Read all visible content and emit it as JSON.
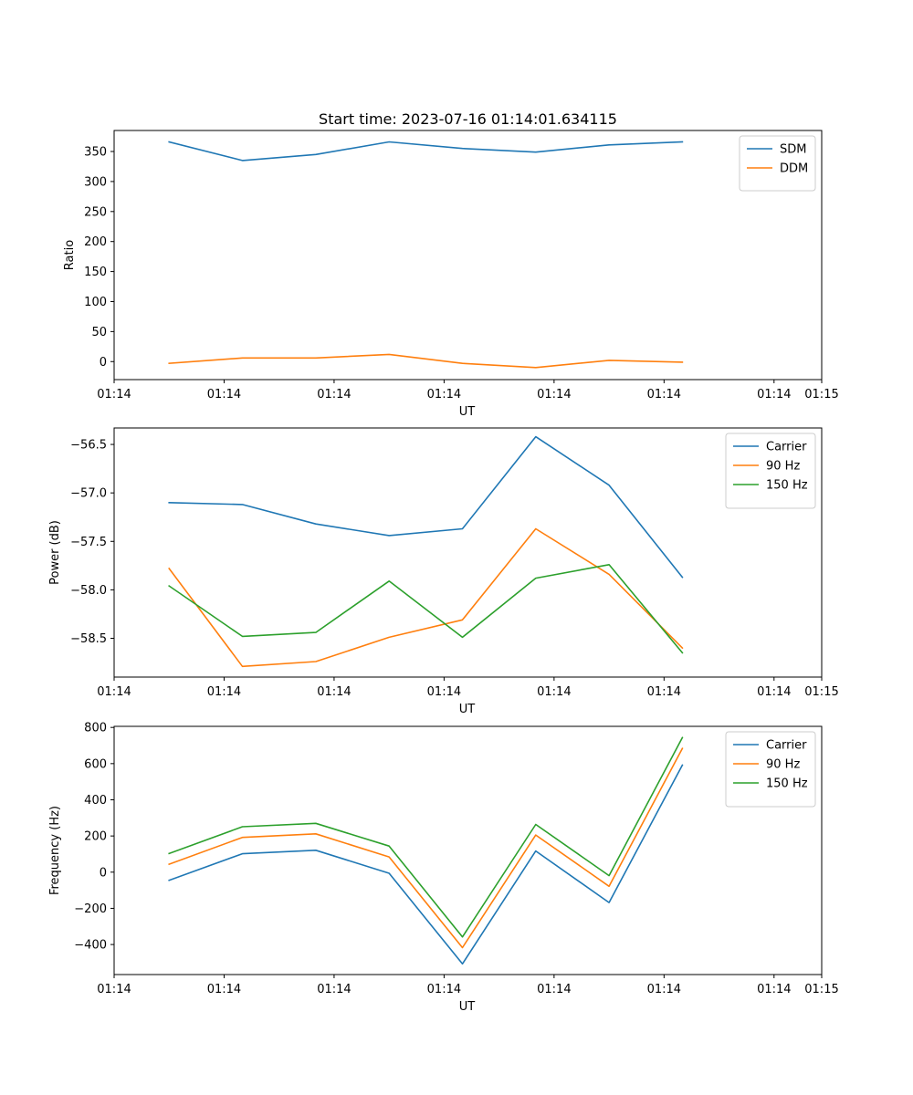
{
  "chart_data": [
    {
      "type": "line",
      "title": "Start time: 2023-07-16 01:14:01.634115",
      "xlabel": "UT",
      "ylabel": "Ratio",
      "x": [
        0,
        1,
        2,
        3,
        4,
        5,
        6,
        7
      ],
      "xlim": [
        -0.75,
        8.9
      ],
      "x_ticks": [
        -0.75,
        0.75,
        2.25,
        3.75,
        5.25,
        6.75,
        8.25,
        8.9
      ],
      "x_tick_labels": [
        "01:14",
        "01:14",
        "01:14",
        "01:14",
        "01:14",
        "01:14",
        "01:14",
        "01:15"
      ],
      "ylim": [
        -30,
        385
      ],
      "y_ticks": [
        0,
        50,
        100,
        150,
        200,
        250,
        300,
        350
      ],
      "y_tick_labels": [
        "0",
        "50",
        "100",
        "150",
        "200",
        "250",
        "300",
        "350"
      ],
      "legend_position": "top-right",
      "series": [
        {
          "name": "SDM",
          "color": "#1f77b4",
          "values": [
            366,
            335,
            345,
            366,
            355,
            349,
            361,
            366
          ]
        },
        {
          "name": "DDM",
          "color": "#ff7f0e",
          "values": [
            -3,
            6,
            6,
            12,
            -3,
            -10,
            2,
            -1
          ]
        }
      ]
    },
    {
      "type": "line",
      "title": "",
      "xlabel": "UT",
      "ylabel": "Power (dB)",
      "x": [
        0,
        1,
        2,
        3,
        4,
        5,
        6,
        7
      ],
      "xlim": [
        -0.75,
        8.9
      ],
      "x_ticks": [
        -0.75,
        0.75,
        2.25,
        3.75,
        5.25,
        6.75,
        8.25,
        8.9
      ],
      "x_tick_labels": [
        "01:14",
        "01:14",
        "01:14",
        "01:14",
        "01:14",
        "01:14",
        "01:14",
        "01:15"
      ],
      "ylim": [
        -58.9,
        -56.33
      ],
      "y_ticks": [
        -58.5,
        -58.0,
        -57.5,
        -57.0,
        -56.5
      ],
      "y_tick_labels": [
        "−58.5",
        "−58.0",
        "−57.5",
        "−57.0",
        "−56.5"
      ],
      "legend_position": "top-right",
      "series": [
        {
          "name": "Carrier",
          "color": "#1f77b4",
          "values": [
            -57.1,
            -57.12,
            -57.32,
            -57.44,
            -57.37,
            -56.42,
            -56.92,
            -57.87
          ]
        },
        {
          "name": "90 Hz",
          "color": "#ff7f0e",
          "values": [
            -57.78,
            -58.79,
            -58.74,
            -58.49,
            -58.31,
            -57.37,
            -57.84,
            -58.6
          ]
        },
        {
          "name": "150 Hz",
          "color": "#2ca02c",
          "values": [
            -57.96,
            -58.48,
            -58.44,
            -57.91,
            -58.49,
            -57.88,
            -57.74,
            -58.65
          ]
        }
      ]
    },
    {
      "type": "line",
      "title": "",
      "xlabel": "UT",
      "ylabel": "Frequency (Hz)",
      "x": [
        0,
        1,
        2,
        3,
        4,
        5,
        6,
        7
      ],
      "xlim": [
        -0.75,
        8.9
      ],
      "x_ticks": [
        -0.75,
        0.75,
        2.25,
        3.75,
        5.25,
        6.75,
        8.25,
        8.9
      ],
      "x_tick_labels": [
        "01:14",
        "01:14",
        "01:14",
        "01:14",
        "01:14",
        "01:14",
        "01:14",
        "01:15"
      ],
      "ylim": [
        -566,
        806
      ],
      "y_ticks": [
        -400,
        -200,
        0,
        200,
        400,
        600,
        800
      ],
      "y_tick_labels": [
        "−400",
        "−200",
        "0",
        "200",
        "400",
        "600",
        "800"
      ],
      "legend_position": "top-right",
      "series": [
        {
          "name": "Carrier",
          "color": "#1f77b4",
          "values": [
            -45,
            102,
            121,
            -6,
            -507,
            117,
            -168,
            592
          ]
        },
        {
          "name": "90 Hz",
          "color": "#ff7f0e",
          "values": [
            44,
            192,
            212,
            84,
            -417,
            205,
            -78,
            684
          ]
        },
        {
          "name": "150 Hz",
          "color": "#2ca02c",
          "values": [
            103,
            251,
            270,
            144,
            -358,
            264,
            -19,
            744
          ]
        }
      ]
    }
  ]
}
